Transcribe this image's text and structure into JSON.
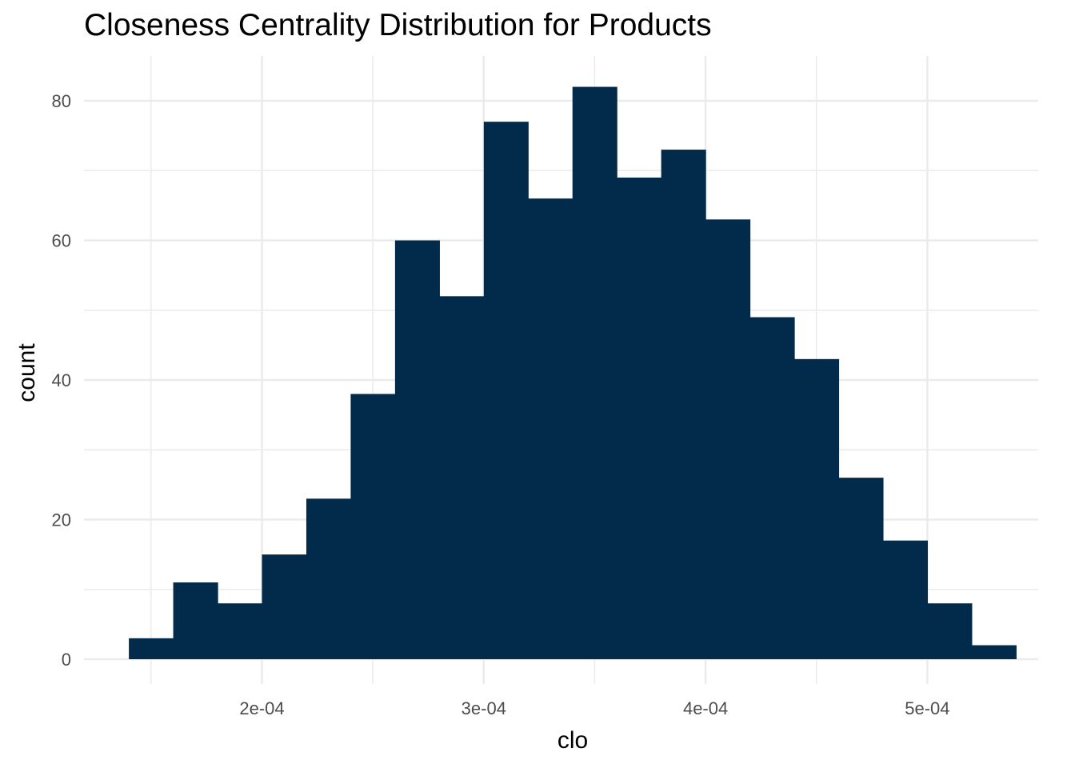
{
  "chart_data": {
    "type": "bar",
    "title": "Closeness Centrality Distribution for Products",
    "xlabel": "clo",
    "ylabel": "count",
    "bin_width": 2e-05,
    "bins": [
      {
        "x_start": 0.00014,
        "x_end": 0.00016,
        "count": 3
      },
      {
        "x_start": 0.00016,
        "x_end": 0.00018,
        "count": 11
      },
      {
        "x_start": 0.00018,
        "x_end": 0.0002,
        "count": 8
      },
      {
        "x_start": 0.0002,
        "x_end": 0.00022,
        "count": 15
      },
      {
        "x_start": 0.00022,
        "x_end": 0.00024,
        "count": 23
      },
      {
        "x_start": 0.00024,
        "x_end": 0.00026,
        "count": 38
      },
      {
        "x_start": 0.00026,
        "x_end": 0.00028,
        "count": 60
      },
      {
        "x_start": 0.00028,
        "x_end": 0.0003,
        "count": 52
      },
      {
        "x_start": 0.0003,
        "x_end": 0.00032,
        "count": 77
      },
      {
        "x_start": 0.00032,
        "x_end": 0.00034,
        "count": 66
      },
      {
        "x_start": 0.00034,
        "x_end": 0.00036,
        "count": 82
      },
      {
        "x_start": 0.00036,
        "x_end": 0.00038,
        "count": 69
      },
      {
        "x_start": 0.00038,
        "x_end": 0.0004,
        "count": 73
      },
      {
        "x_start": 0.0004,
        "x_end": 0.00042,
        "count": 63
      },
      {
        "x_start": 0.00042,
        "x_end": 0.00044,
        "count": 49
      },
      {
        "x_start": 0.00044,
        "x_end": 0.00046,
        "count": 43
      },
      {
        "x_start": 0.00046,
        "x_end": 0.00048,
        "count": 26
      },
      {
        "x_start": 0.00048,
        "x_end": 0.0005,
        "count": 17
      },
      {
        "x_start": 0.0005,
        "x_end": 0.00052,
        "count": 8
      },
      {
        "x_start": 0.00052,
        "x_end": 0.00054,
        "count": 2
      }
    ],
    "xlim": [
      0.00013,
      0.00055
    ],
    "ylim": [
      0,
      85
    ],
    "x_ticks": [
      {
        "value": 0.0002,
        "label": "2e-04"
      },
      {
        "value": 0.0003,
        "label": "3e-04"
      },
      {
        "value": 0.0004,
        "label": "4e-04"
      },
      {
        "value": 0.0005,
        "label": "5e-04"
      }
    ],
    "y_ticks": [
      {
        "value": 0,
        "label": "0"
      },
      {
        "value": 20,
        "label": "20"
      },
      {
        "value": 40,
        "label": "40"
      },
      {
        "value": 60,
        "label": "60"
      },
      {
        "value": 80,
        "label": "80"
      }
    ],
    "grid": true,
    "bar_color": "#022A4A",
    "gridline_color": "#EBEBEB"
  }
}
